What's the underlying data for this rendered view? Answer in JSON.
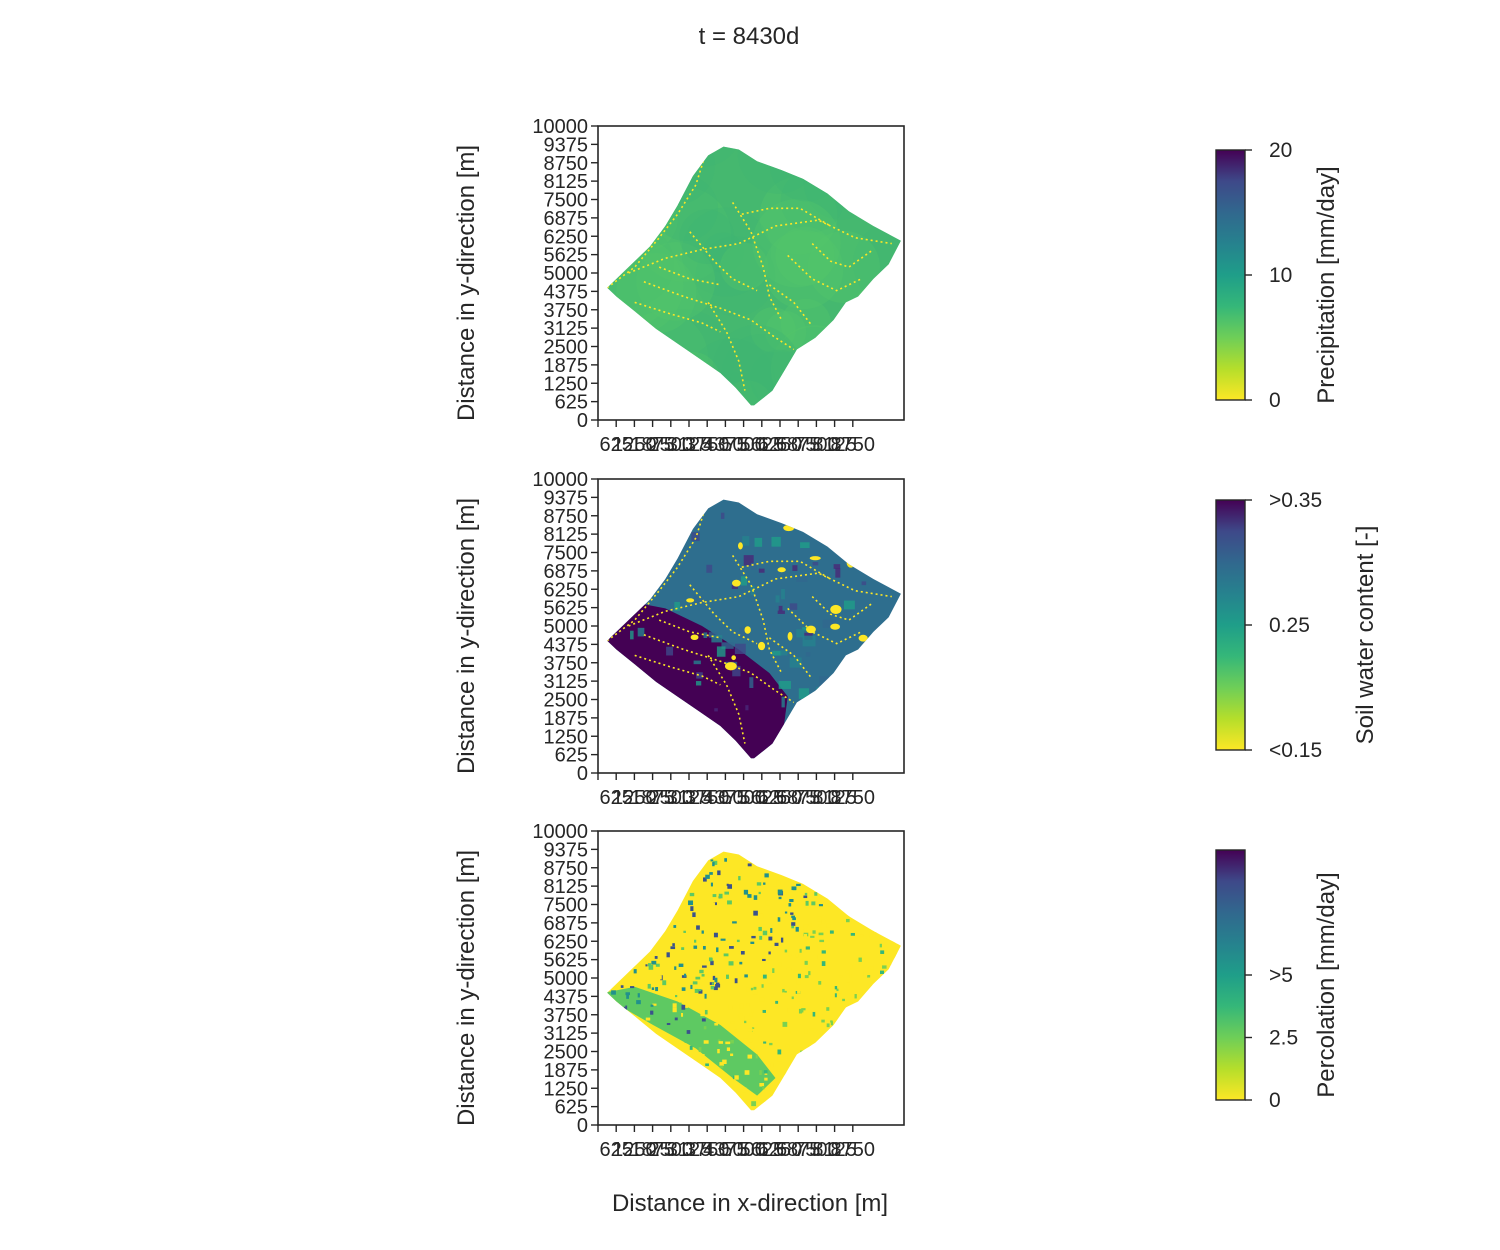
{
  "figure": {
    "title": "t = 8430d",
    "xlabel": "Distance in x-direction [m]"
  },
  "chart_data": [
    {
      "type": "heatmap",
      "panel": "precipitation",
      "ylabel": "Distance in y-direction [m]",
      "xticks": [
        "625",
        "1250",
        "1875",
        "2500",
        "3125",
        "3750",
        "4375",
        "5000",
        "5625",
        "6250",
        "6875",
        "7500",
        "8125",
        "8750"
      ],
      "yticks": [
        "0",
        "625",
        "1250",
        "1875",
        "2500",
        "3125",
        "3750",
        "4375",
        "5000",
        "5625",
        "6250",
        "6875",
        "7500",
        "8125",
        "8750",
        "9375",
        "10000"
      ],
      "xlim": [
        0,
        10000
      ],
      "ylim": [
        0,
        10000
      ],
      "colorbar": {
        "label": "Precipitation [mm/day]",
        "ticks": [
          {
            "value": 0,
            "label": "0"
          },
          {
            "value": 10,
            "label": "10"
          },
          {
            "value": 20,
            "label": "20"
          }
        ],
        "range": [
          0,
          20
        ],
        "colormap": "viridis_r"
      },
      "field": {
        "base_color": "#45b86f",
        "channel_color": "#fde725",
        "texture": "smooth"
      }
    },
    {
      "type": "heatmap",
      "panel": "soil_water_content",
      "ylabel": "Distance in y-direction [m]",
      "xticks": [
        "625",
        "1250",
        "1875",
        "2500",
        "3125",
        "3750",
        "4375",
        "5000",
        "5625",
        "6250",
        "6875",
        "7500",
        "8125",
        "8750"
      ],
      "yticks": [
        "0",
        "625",
        "1250",
        "1875",
        "2500",
        "3125",
        "3750",
        "4375",
        "5000",
        "5625",
        "6250",
        "6875",
        "7500",
        "8125",
        "8750",
        "9375",
        "10000"
      ],
      "xlim": [
        0,
        10000
      ],
      "ylim": [
        0,
        10000
      ],
      "colorbar": {
        "label": "Soil water content [-]",
        "ticks": [
          {
            "value": 0.15,
            "label": "<0.15"
          },
          {
            "value": 0.25,
            "label": "0.25"
          },
          {
            "value": 0.35,
            "label": ">0.35"
          }
        ],
        "range": [
          0.15,
          0.35
        ],
        "colormap": "viridis_r"
      },
      "field": {
        "base_color": "#2e6e8e",
        "wet_color": "#440154",
        "channel_color": "#fde725",
        "texture": "patchy"
      }
    },
    {
      "type": "heatmap",
      "panel": "percolation",
      "ylabel": "Distance in y-direction [m]",
      "xticks": [
        "625",
        "1250",
        "1875",
        "2500",
        "3125",
        "3750",
        "4375",
        "5000",
        "5625",
        "6250",
        "6875",
        "7500",
        "8125",
        "8750"
      ],
      "yticks": [
        "0",
        "625",
        "1250",
        "1875",
        "2500",
        "3125",
        "3750",
        "4375",
        "5000",
        "5625",
        "6250",
        "6875",
        "7500",
        "8125",
        "8750",
        "9375",
        "10000"
      ],
      "xlim": [
        0,
        10000
      ],
      "ylim": [
        0,
        10000
      ],
      "colorbar": {
        "label": "Percolation [mm/day]",
        "ticks": [
          {
            "value": 0,
            "label": "0"
          },
          {
            "value": 2.5,
            "label": "2.5"
          },
          {
            "value": 5,
            "label": ">5"
          }
        ],
        "range": [
          0,
          10
        ],
        "colormap": "viridis_r"
      },
      "field": {
        "base_color": "#fde725",
        "mid_color": "#5ec962",
        "high_color": "#3b528b",
        "texture": "speckled"
      }
    }
  ]
}
